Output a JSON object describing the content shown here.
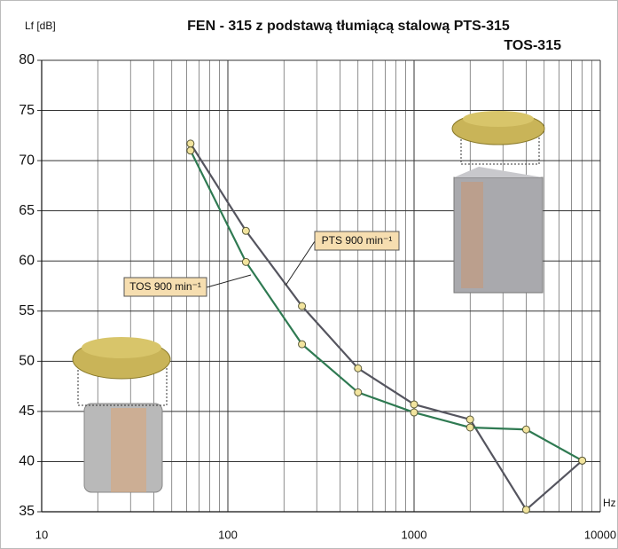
{
  "chart_data": {
    "type": "line",
    "title": "FEN - 315 z podstawą tłumiącą stalową PTS-315",
    "subtitle": "TOS-315",
    "y_label": "Lf [dB]",
    "x_label": "Hz",
    "log_x": true,
    "grid": true,
    "x": [
      63,
      125,
      250,
      500,
      1000,
      2000,
      4000,
      8000
    ],
    "series": [
      {
        "name": "PTS 900 min⁻¹",
        "color": "#55555f",
        "values": [
          71.7,
          63,
          55.5,
          49.3,
          45.7,
          44.2,
          35.2,
          40.1
        ]
      },
      {
        "name": "TOS 900 min⁻¹",
        "color": "#2f7a52",
        "values": [
          71.0,
          59.9,
          51.7,
          46.9,
          44.9,
          43.4,
          43.2,
          40.1
        ]
      }
    ],
    "xlim": [
      10,
      10000
    ],
    "xticks": [
      10,
      100,
      1000,
      10000
    ],
    "ylim": [
      35,
      80
    ],
    "yticks": [
      35,
      40,
      45,
      50,
      55,
      60,
      65,
      70,
      75,
      80
    ]
  }
}
